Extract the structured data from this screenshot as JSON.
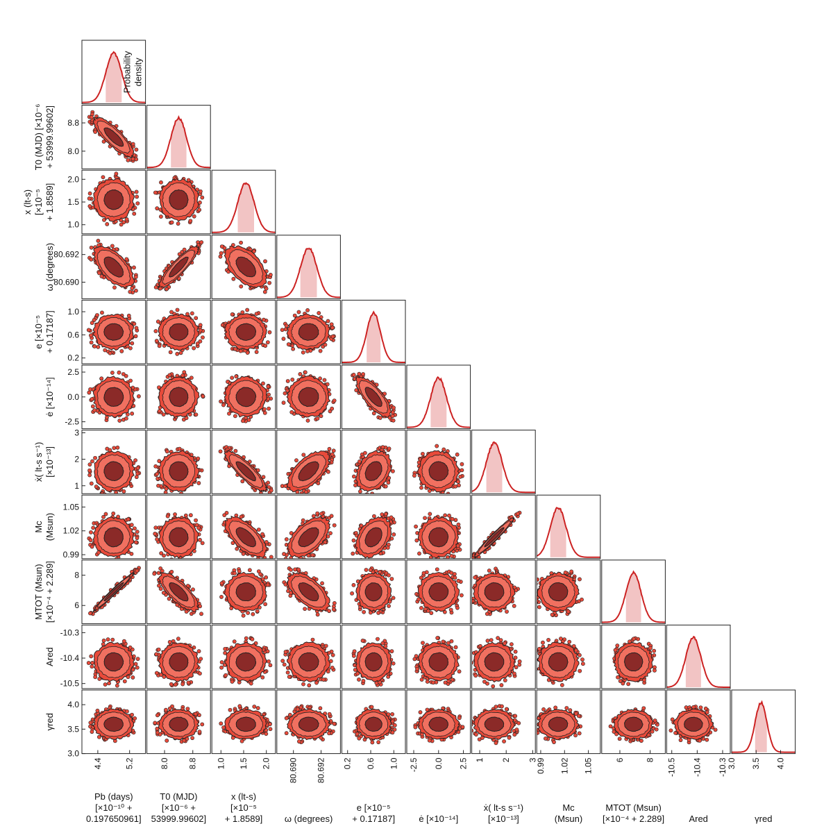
{
  "chart_data": {
    "type": "corner",
    "description_of_marks": "posterior density contours (1-sigma dark, 2-sigma light) with histograms on diagonal",
    "colors": {
      "line": "#cc2222",
      "fill_light": "#f07060",
      "fill_outer": "#e84a3a",
      "fill_inner": "#8b2a28",
      "band": "#f2c4c4",
      "edge": "#222222"
    },
    "diagonal_ylabel": [
      "Probability",
      "density"
    ],
    "parameters": [
      {
        "key": "pb",
        "xlabel": "Pb (days)\n[×10⁻¹⁰ +\n0.197650961]",
        "ylabel": "",
        "ticks": [],
        "range": [
          4.0,
          5.6
        ],
        "mean": 4.8,
        "sigma": 0.2
      },
      {
        "key": "t0",
        "xlabel": "T0 (MJD)\n[×10⁻⁶ +\n53999.99602]",
        "ylabel": "T0 (MJD) [×10⁻⁶\n+ 53999.99602]",
        "ticks": [
          "8.0",
          "8.8"
        ],
        "tick_values": [
          8.0,
          8.8
        ],
        "range": [
          7.5,
          9.3
        ],
        "mean": 8.4,
        "sigma": 0.22
      },
      {
        "key": "x",
        "xlabel": "x (lt-s)\n[×10⁻⁵\n+ 1.8589]",
        "ylabel": "x (lt-s)\n[×10⁻⁵\n+ 1.8589]",
        "ticks": [
          "1.0",
          "1.5",
          "2.0"
        ],
        "tick_values": [
          1.0,
          1.5,
          2.0
        ],
        "range": [
          0.8,
          2.2
        ],
        "mean": 1.55,
        "sigma": 0.18
      },
      {
        "key": "om",
        "xlabel": "ω (degrees)",
        "ylabel": "ω (degrees)",
        "ticks": [
          "80.690",
          "80.692"
        ],
        "tick_values": [
          80.69,
          80.692
        ],
        "range": [
          80.6888,
          80.6934
        ],
        "mean": 80.6911,
        "sigma": 0.0006
      },
      {
        "key": "e",
        "xlabel": "e [×10⁻⁵\n+ 0.17187]",
        "ylabel": "e [×10⁻⁵\n+ 0.17187]",
        "ticks": [
          "0.2",
          "0.6",
          "1.0"
        ],
        "tick_values": [
          0.2,
          0.6,
          1.0
        ],
        "range": [
          0.1,
          1.2
        ],
        "mean": 0.65,
        "sigma": 0.12
      },
      {
        "key": "ed",
        "xlabel": "ė [×10⁻¹⁴]",
        "ylabel": "ė [×10⁻¹⁴]",
        "ticks": [
          "-2.5",
          "0.0",
          "2.5"
        ],
        "tick_values": [
          -2.5,
          0.0,
          2.5
        ],
        "range": [
          -3.2,
          3.2
        ],
        "mean": 0.0,
        "sigma": 0.8
      },
      {
        "key": "xd",
        "xlabel": "ẋ( lt-s s⁻¹)\n[×10⁻¹³]",
        "ylabel": "ẋ( lt-s s⁻¹)\n[×10⁻¹³]",
        "ticks": [
          "1",
          "2",
          "3"
        ],
        "tick_values": [
          1,
          2,
          3
        ],
        "range": [
          0.7,
          3.1
        ],
        "mean": 1.55,
        "sigma": 0.3
      },
      {
        "key": "mc",
        "xlabel": "Mc\n(Msun)",
        "ylabel": "Mc\n(Msun)",
        "ticks": [
          "0.99",
          "1.02",
          "1.05"
        ],
        "tick_values": [
          0.99,
          1.02,
          1.05
        ],
        "range": [
          0.985,
          1.065
        ],
        "mean": 1.012,
        "sigma": 0.01
      },
      {
        "key": "mtot",
        "xlabel": "MTOT (Msun)\n[×10⁻⁴ + 2.289]",
        "ylabel": "MTOT (Msun)\n[×10⁻⁴ + 2.289]",
        "ticks": [
          "6",
          "8"
        ],
        "tick_values": [
          6,
          8
        ],
        "range": [
          4.8,
          9.0
        ],
        "mean": 6.9,
        "sigma": 0.5
      },
      {
        "key": "ared",
        "xlabel": "Ared",
        "ylabel": "Ared",
        "ticks": [
          "-10.5",
          "-10.4",
          "-10.3"
        ],
        "tick_values": [
          -10.5,
          -10.4,
          -10.3
        ],
        "range": [
          -10.52,
          -10.27
        ],
        "mean": -10.415,
        "sigma": 0.03
      },
      {
        "key": "gred",
        "xlabel": "γred",
        "ylabel": "γred",
        "ticks": [
          "3.0",
          "3.5",
          "4.0"
        ],
        "tick_values": [
          3.0,
          3.5,
          4.0
        ],
        "range": [
          3.0,
          4.3
        ],
        "mean": 3.6,
        "sigma": 0.12
      }
    ],
    "x_tick_overrides": {
      "pb": {
        "ticks": [
          "4.4",
          "5.2"
        ],
        "tick_values": [
          4.4,
          5.2
        ]
      },
      "ared": {
        "ticks": [
          "-10.5",
          "-10.4",
          "-10.3"
        ],
        "tick_values": [
          -10.5,
          -10.4,
          -10.3
        ]
      }
    },
    "correlations": [
      {
        "pair": [
          "t0",
          "pb"
        ],
        "rho": -0.82
      },
      {
        "pair": [
          "om",
          "pb"
        ],
        "rho": -0.6
      },
      {
        "pair": [
          "om",
          "t0"
        ],
        "rho": 0.88
      },
      {
        "pair": [
          "om",
          "x"
        ],
        "rho": -0.5
      },
      {
        "pair": [
          "ed",
          "e"
        ],
        "rho": -0.75
      },
      {
        "pair": [
          "xd",
          "x"
        ],
        "rho": -0.85
      },
      {
        "pair": [
          "xd",
          "om"
        ],
        "rho": 0.6
      },
      {
        "pair": [
          "xd",
          "e"
        ],
        "rho": 0.3
      },
      {
        "pair": [
          "mc",
          "x"
        ],
        "rho": -0.65
      },
      {
        "pair": [
          "mc",
          "om"
        ],
        "rho": 0.55
      },
      {
        "pair": [
          "mc",
          "e"
        ],
        "rho": 0.35
      },
      {
        "pair": [
          "mc",
          "xd"
        ],
        "rho": 0.97
      },
      {
        "pair": [
          "mtot",
          "pb"
        ],
        "rho": 0.98
      },
      {
        "pair": [
          "mtot",
          "t0"
        ],
        "rho": -0.75
      },
      {
        "pair": [
          "mtot",
          "om"
        ],
        "rho": -0.6
      }
    ]
  }
}
